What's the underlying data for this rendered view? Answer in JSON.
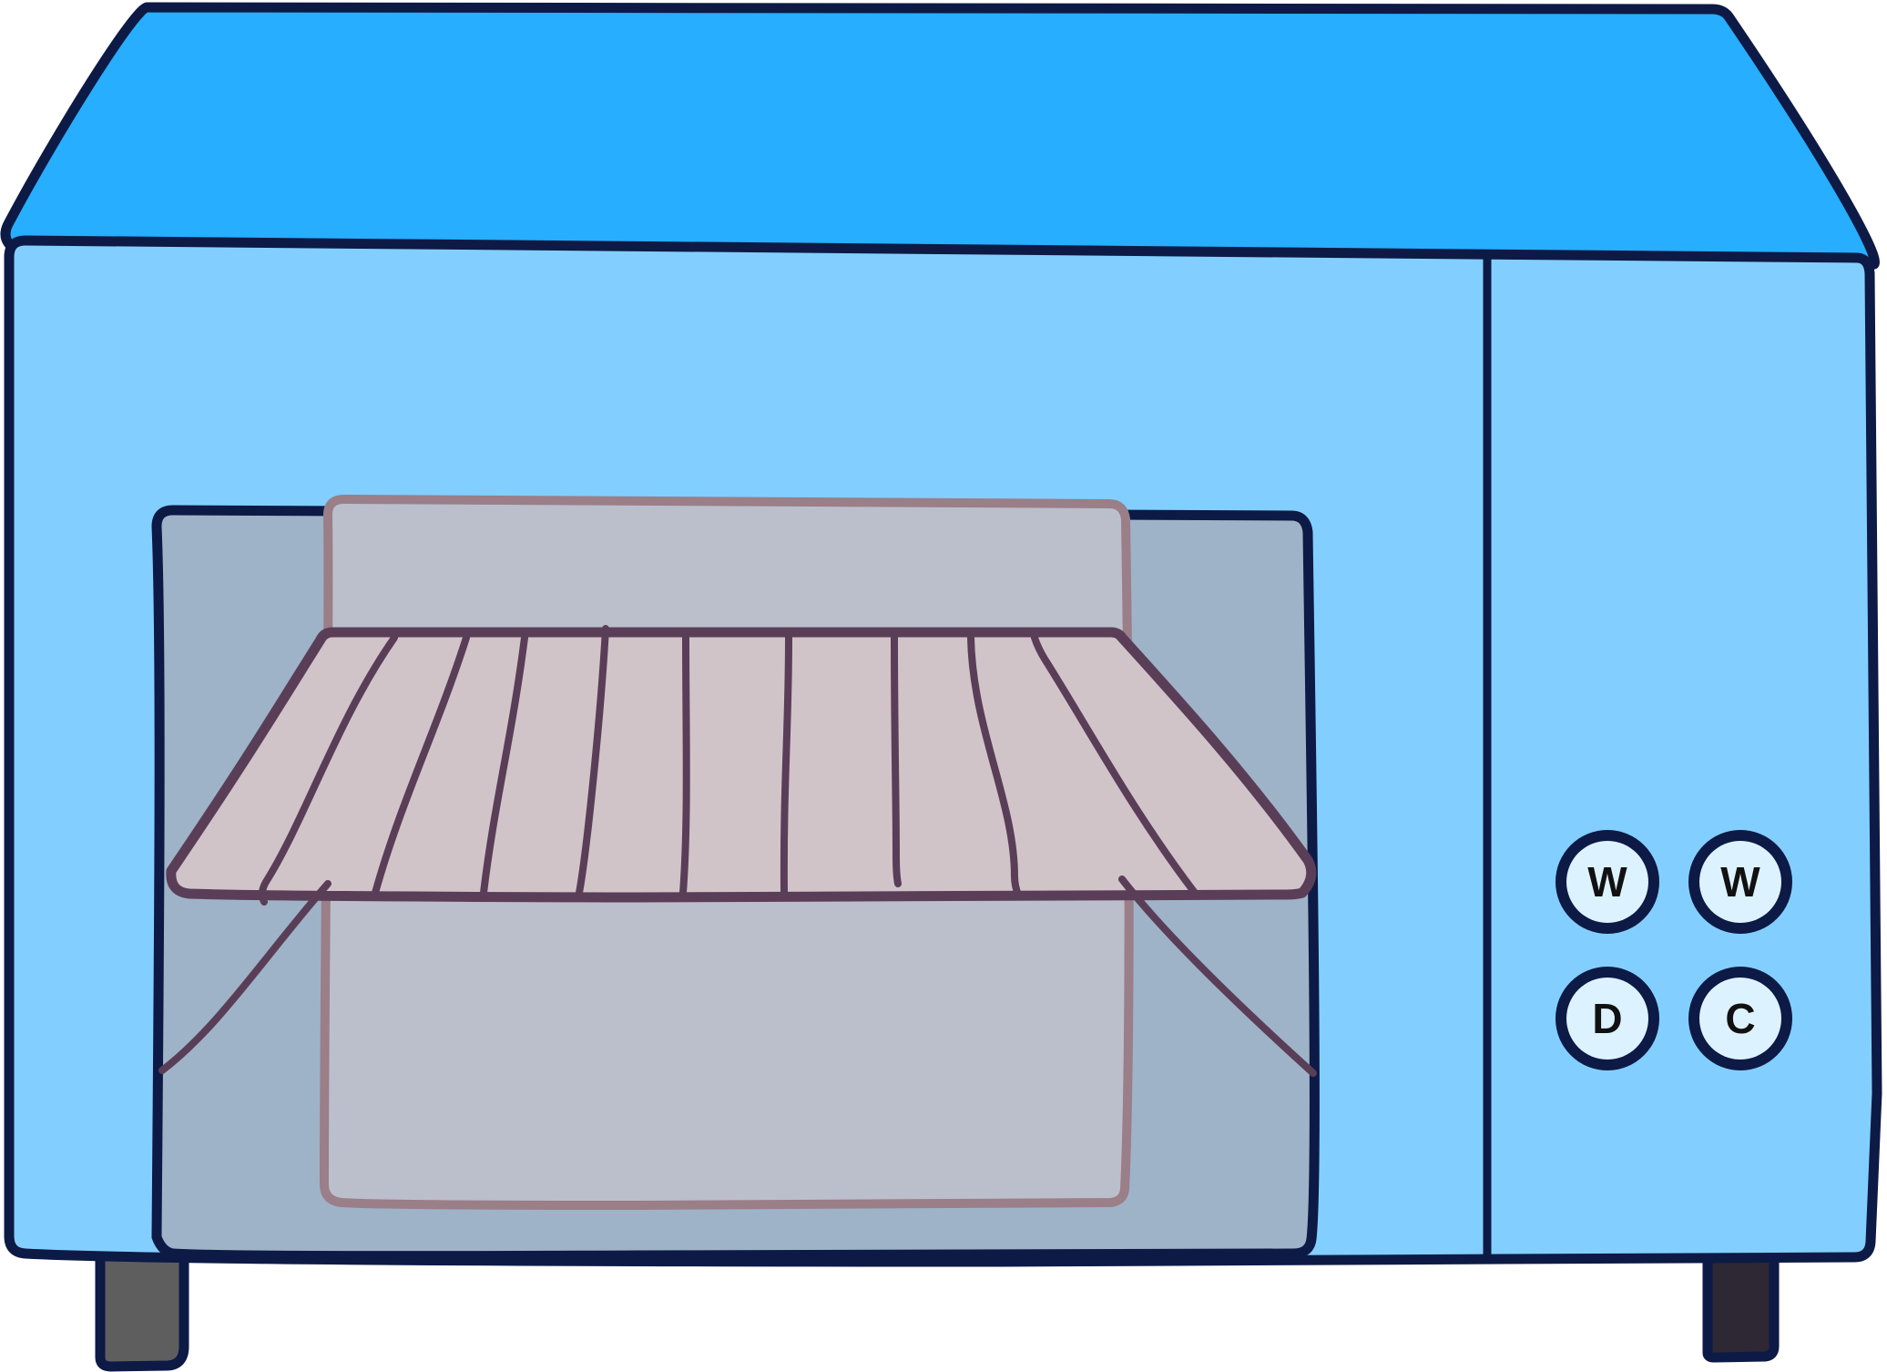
{
  "scene": {
    "title": "",
    "colors": {
      "outline": "#0d1a45",
      "top_panel": "#27aeff",
      "body": "#82cfff",
      "window": "#9eb3c7",
      "back_panel": "#bbbfcb",
      "tray": "#d0c4c9",
      "rack": "#5a3e58",
      "button_face": "#ddf2ff",
      "foot_left": "#5e5e5e",
      "foot_right": "#2d2834"
    }
  },
  "control_panel": {
    "buttons": [
      {
        "name": "w-button-1",
        "label": "W"
      },
      {
        "name": "w-button-2",
        "label": "W"
      },
      {
        "name": "d-button",
        "label": "D"
      },
      {
        "name": "c-button",
        "label": "C"
      }
    ]
  }
}
